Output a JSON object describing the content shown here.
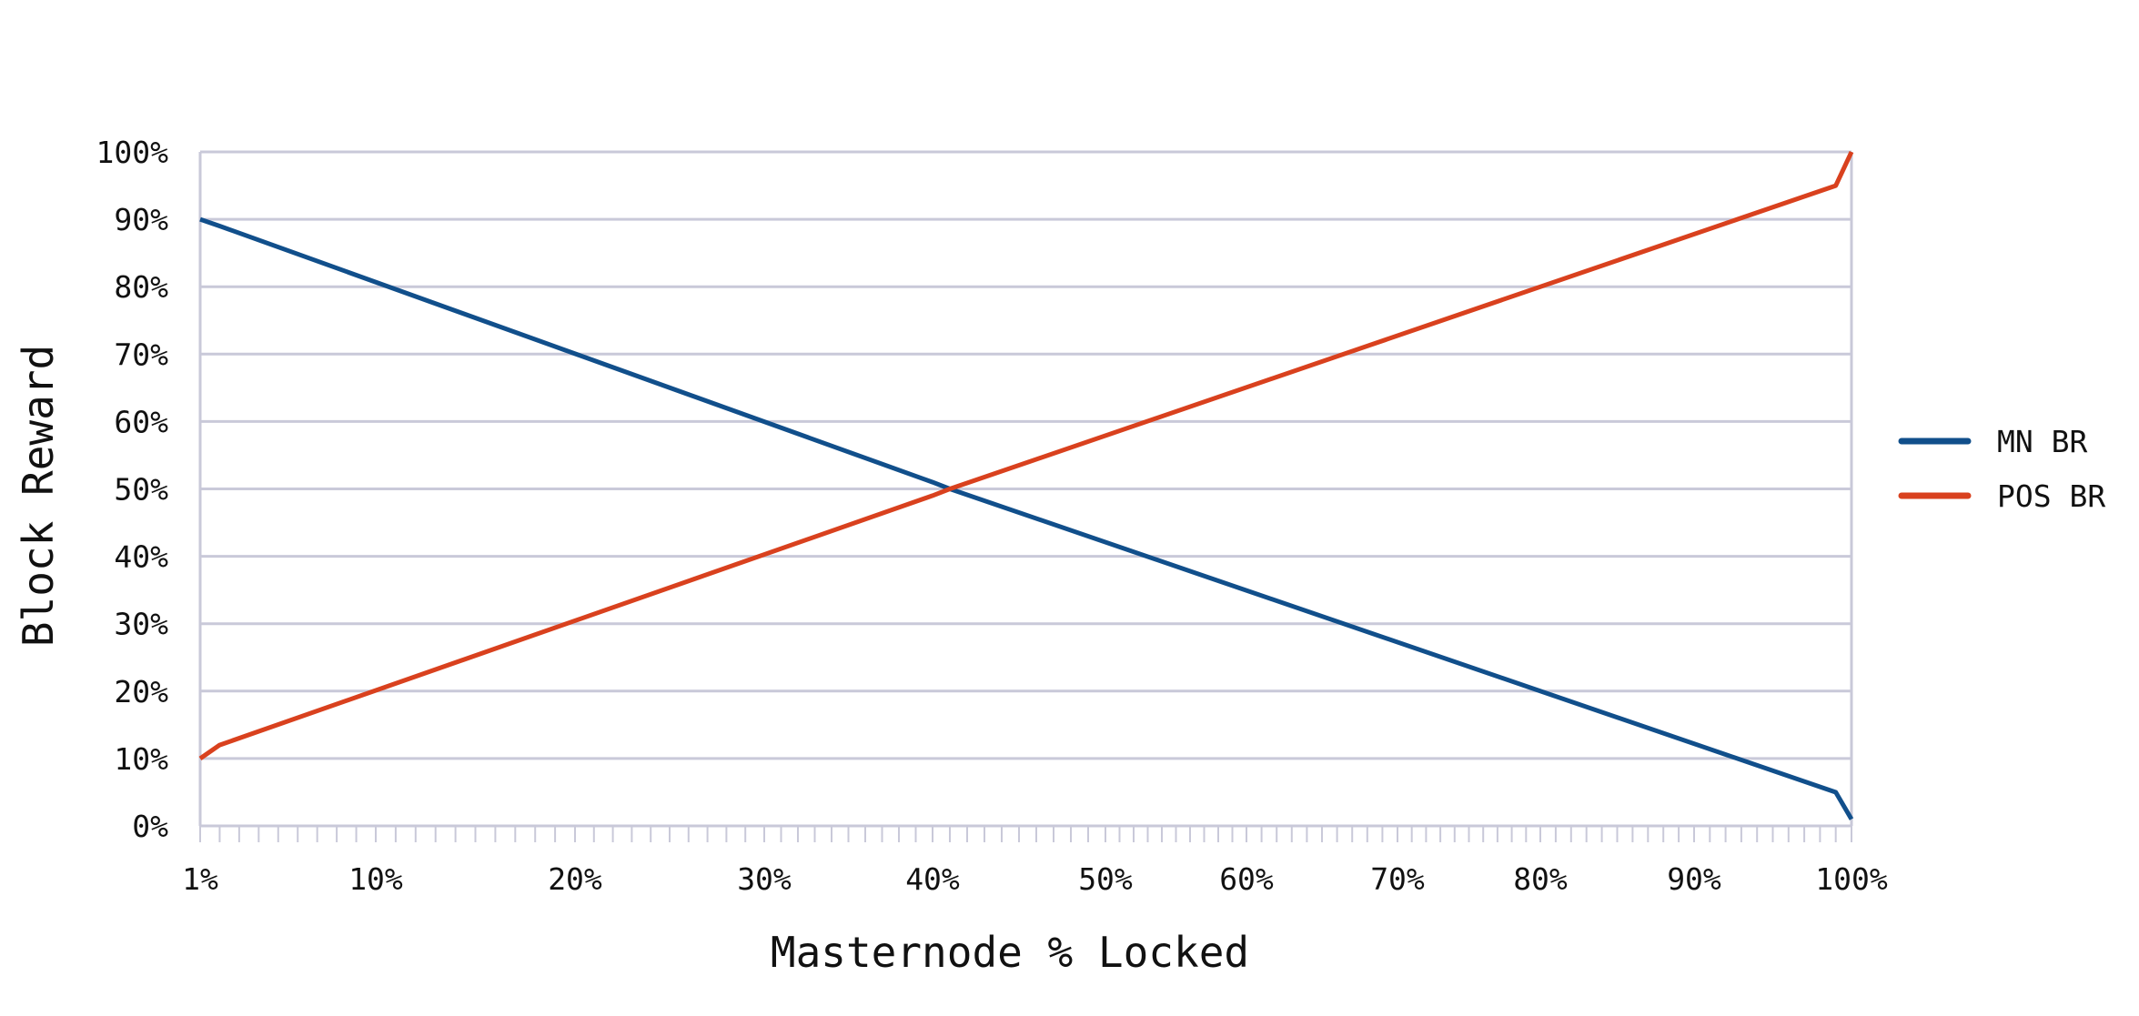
{
  "chart_data": {
    "type": "line",
    "title": "",
    "xlabel": "Masternode % Locked",
    "ylabel": "Block Reward",
    "y_ticks": [
      "0%",
      "10%",
      "20%",
      "30%",
      "40%",
      "50%",
      "60%",
      "70%",
      "80%",
      "90%",
      "100%"
    ],
    "x_ticks": [
      {
        "label": "1%",
        "value": 1
      },
      {
        "label": "10%",
        "value": 10
      },
      {
        "label": "20%",
        "value": 20
      },
      {
        "label": "30%",
        "value": 30
      },
      {
        "label": "40%",
        "value": 40
      },
      {
        "label": "50%",
        "value": 50
      },
      {
        "label": "60%",
        "value": 60
      },
      {
        "label": "70%",
        "value": 70
      },
      {
        "label": "80%",
        "value": 80
      },
      {
        "label": "90%",
        "value": 90
      },
      {
        "label": "100%",
        "value": 100
      }
    ],
    "ylim": [
      0,
      100
    ],
    "grid": true,
    "legend_position": "right",
    "series": [
      {
        "name": "MN BR",
        "color": "#114f8b",
        "points": [
          [
            1,
            90
          ],
          [
            2,
            89
          ],
          [
            40,
            51
          ],
          [
            41,
            50
          ],
          [
            99,
            5
          ],
          [
            100,
            1
          ]
        ]
      },
      {
        "name": "POS BR",
        "color": "#d9411e",
        "points": [
          [
            1,
            10
          ],
          [
            2,
            12
          ],
          [
            40,
            49
          ],
          [
            41,
            50
          ],
          [
            99,
            95
          ],
          [
            100,
            100
          ]
        ]
      }
    ]
  }
}
